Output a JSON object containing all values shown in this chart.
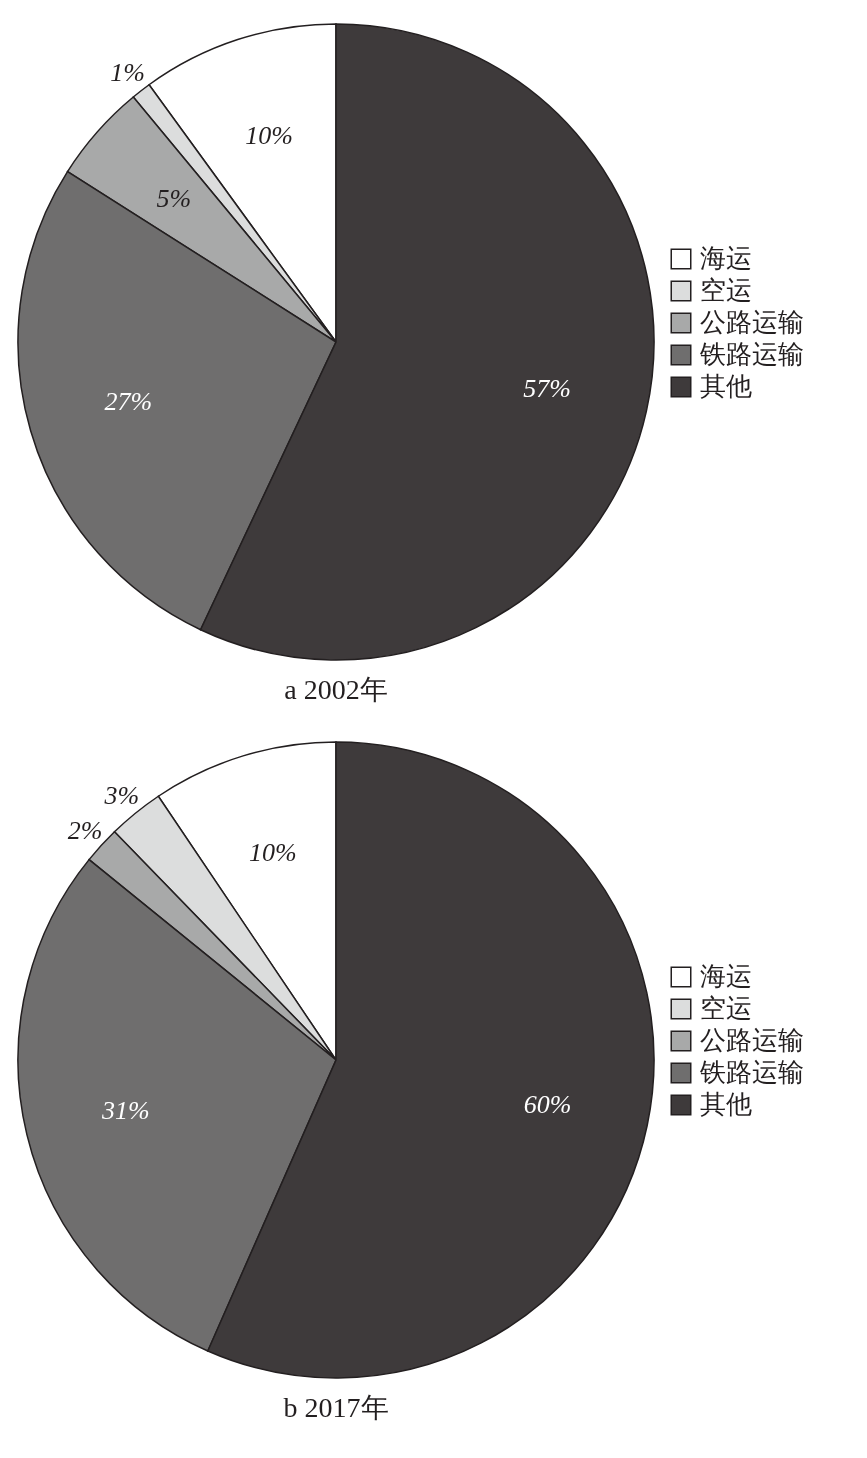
{
  "chart_data": [
    {
      "type": "pie",
      "title": "a 2002年",
      "categories": [
        "海运",
        "空运",
        "公路运输",
        "铁路运输",
        "其他"
      ],
      "values": [
        10,
        1,
        5,
        27,
        57
      ],
      "colors": [
        "#ffffff",
        "#dcdddd",
        "#a8a9a9",
        "#6f6e6e",
        "#3e3a3b"
      ],
      "value_labels": [
        "10%",
        "1%",
        "5%",
        "27%",
        "57%"
      ],
      "legend": "right"
    },
    {
      "type": "pie",
      "title": "b 2017年",
      "categories": [
        "海运",
        "空运",
        "公路运输",
        "铁路运输",
        "其他"
      ],
      "values": [
        10,
        3,
        2,
        31,
        60
      ],
      "colors": [
        "#ffffff",
        "#dcdddd",
        "#a8a9a9",
        "#6f6e6e",
        "#3e3a3b"
      ],
      "value_labels": [
        "10%",
        "3%",
        "2%",
        "31%",
        "60%"
      ],
      "legend": "right"
    }
  ]
}
